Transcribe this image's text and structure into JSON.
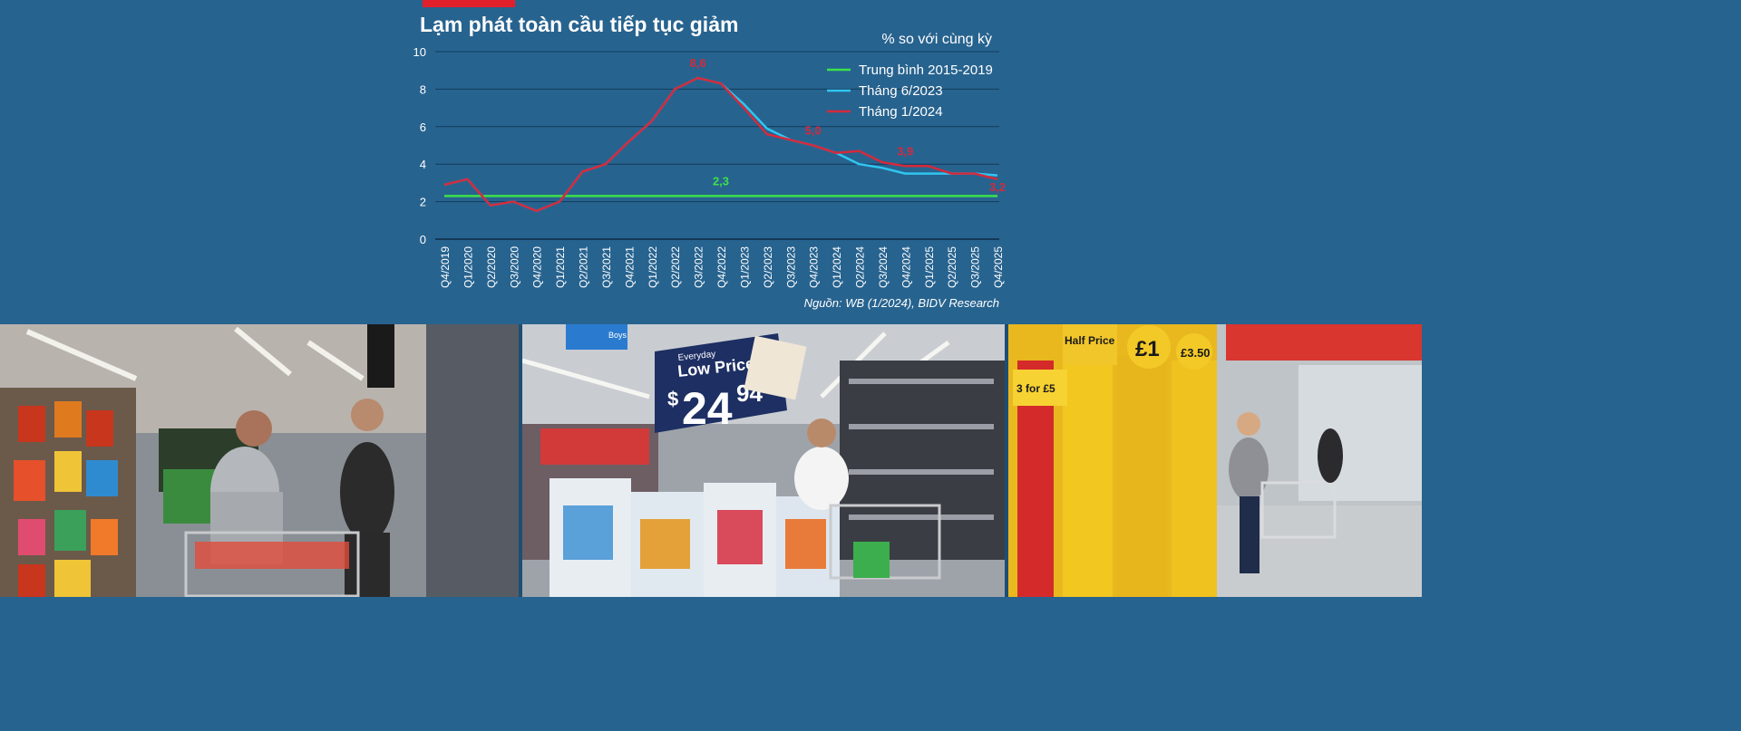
{
  "chart_data": {
    "type": "line",
    "title": "Lạm phát toàn cầu tiếp tục giảm",
    "unit_label": "% so với cùng kỳ",
    "source": "Nguồn: WB (1/2024), BIDV Research",
    "x": [
      "Q4/2019",
      "Q1/2020",
      "Q2/2020",
      "Q3/2020",
      "Q4/2020",
      "Q1/2021",
      "Q2/2021",
      "Q3/2021",
      "Q4/2021",
      "Q1/2022",
      "Q2/2022",
      "Q3/2022",
      "Q4/2022",
      "Q1/2023",
      "Q2/2023",
      "Q3/2023",
      "Q4/2023",
      "Q1/2024",
      "Q2/2024",
      "Q3/2024",
      "Q4/2024",
      "Q1/2025",
      "Q2/2025",
      "Q3/2025",
      "Q4/2025"
    ],
    "ylim": [
      0,
      10
    ],
    "yticks": [
      "0",
      "2",
      "4",
      "6",
      "8",
      "10"
    ],
    "series": [
      {
        "name": "Trung bình 2015-2019",
        "color": "#3de04a",
        "values": [
          2.3,
          2.3,
          2.3,
          2.3,
          2.3,
          2.3,
          2.3,
          2.3,
          2.3,
          2.3,
          2.3,
          2.3,
          2.3,
          2.3,
          2.3,
          2.3,
          2.3,
          2.3,
          2.3,
          2.3,
          2.3,
          2.3,
          2.3,
          2.3,
          2.3
        ]
      },
      {
        "name": "Tháng 6/2023",
        "color": "#2fc6f0",
        "values": [
          2.9,
          3.2,
          1.8,
          2.0,
          1.5,
          2.0,
          3.6,
          4.0,
          5.2,
          6.3,
          8.0,
          8.6,
          8.3,
          7.2,
          5.9,
          5.3,
          5.0,
          4.6,
          4.0,
          3.8,
          3.5,
          3.5,
          3.5,
          3.5,
          3.4
        ]
      },
      {
        "name": "Tháng 1/2024",
        "color": "#d42a3c",
        "values": [
          2.9,
          3.2,
          1.8,
          2.0,
          1.5,
          2.0,
          3.6,
          4.0,
          5.2,
          6.3,
          8.0,
          8.6,
          8.3,
          7.0,
          5.6,
          5.3,
          5.0,
          4.6,
          4.7,
          4.1,
          3.9,
          3.9,
          3.5,
          3.5,
          3.2
        ]
      }
    ],
    "annotations": [
      {
        "text": "8,6",
        "series": "Tháng 1/2024",
        "x": "Q3/2022",
        "color": "#d42a3c"
      },
      {
        "text": "5,0",
        "series": "Tháng 1/2024",
        "x": "Q4/2023",
        "color": "#d42a3c"
      },
      {
        "text": "3,9",
        "series": "Tháng 1/2024",
        "x": "Q4/2024",
        "color": "#d42a3c"
      },
      {
        "text": "3,2",
        "series": "Tháng 1/2024",
        "x": "Q4/2025",
        "color": "#d42a3c"
      },
      {
        "text": "2,3",
        "series": "Trung bình 2015-2019",
        "x": "Q4/2022",
        "color": "#3de04a"
      }
    ],
    "legend": "top-right",
    "grid": true
  },
  "colors": {
    "background": "#27638f",
    "accent_bar": "#e2202c",
    "text": "#ffffff"
  },
  "photos": [
    {
      "name": "shoppers-in-aisle-photo"
    },
    {
      "name": "low-price-display-photo",
      "sign_small": "Everyday",
      "sign_big": "Low Price",
      "price_dollar": "$",
      "price_main": "24",
      "price_cents": "94",
      "boys_sign": "Boys"
    },
    {
      "name": "supermarket-shopper-photo",
      "sign_half_price": "Half Price",
      "sign_pound": "£1",
      "sign_350": "£3.50",
      "sign_3for5": "3 for £5"
    }
  ]
}
